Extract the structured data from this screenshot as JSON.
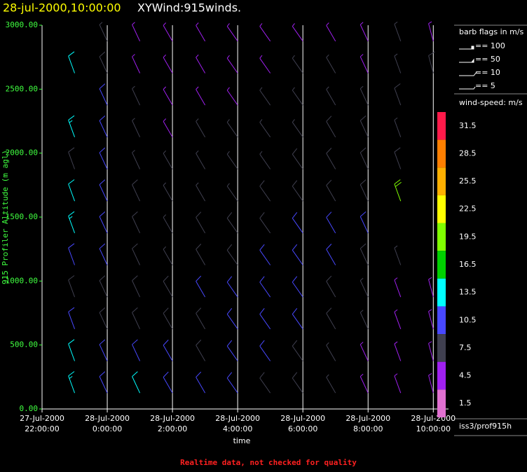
{
  "chart_data": {
    "type": "barb",
    "title": "28-jul-2000,10:00:00",
    "subtitle": "XYWind:915winds.",
    "ylabel": "915 Profiler Altitude (m agl)",
    "xlabel": "time",
    "note": "Realtime data, not checked for quality",
    "station": "iss3/prof915h",
    "barb_legend_title": "barb flags in m/s",
    "barb_legend": [
      "== 100",
      "== 50",
      "== 10",
      "== 5"
    ],
    "colorbar_title": "wind-speed: m/s",
    "colorbar_levels": [
      31.5,
      28.5,
      25.5,
      22.5,
      19.5,
      16.5,
      13.5,
      10.5,
      7.5,
      4.5,
      1.5
    ],
    "colorbar_colors": [
      "#ff1a4a",
      "#ff7f00",
      "#ffb000",
      "#ffff00",
      "#80ff00",
      "#00d000",
      "#00ffff",
      "#4848ff",
      "#404050",
      "#a020f0",
      "#e070d0"
    ],
    "ylim": [
      0,
      3000
    ],
    "yticks": [
      {
        "value": 0,
        "label": "0.00"
      },
      {
        "value": 500,
        "label": "500.00"
      },
      {
        "value": 1000,
        "label": "1000.00"
      },
      {
        "value": 1500,
        "label": "1500.00"
      },
      {
        "value": 2000,
        "label": "2000.00"
      },
      {
        "value": 2500,
        "label": "2500.00"
      },
      {
        "value": 3000,
        "label": "3000.00"
      }
    ],
    "xlim": [
      "2000-07-27T22:00",
      "2000-07-28T10:28"
    ],
    "xticks": [
      {
        "value": "2000-07-27T22:00",
        "label": [
          "27-Jul-2000",
          "22:00:00"
        ]
      },
      {
        "value": "2000-07-28T00:00",
        "label": [
          "28-Jul-2000",
          "0:00:00"
        ]
      },
      {
        "value": "2000-07-28T02:00",
        "label": [
          "28-Jul-2000",
          "2:00:00"
        ]
      },
      {
        "value": "2000-07-28T04:00",
        "label": [
          "28-Jul-2000",
          "4:00:00"
        ]
      },
      {
        "value": "2000-07-28T06:00",
        "label": [
          "28-Jul-2000",
          "6:00:00"
        ]
      },
      {
        "value": "2000-07-28T08:00",
        "label": [
          "28-Jul-2000",
          "8:00:00"
        ]
      },
      {
        "value": "2000-07-28T10:00",
        "label": [
          "28-Jul-2000",
          "10:00:00"
        ]
      }
    ],
    "grid": true,
    "altitudes": [
      125,
      375,
      625,
      875,
      1125,
      1375,
      1625,
      1875,
      2125,
      2375,
      2625,
      2875
    ],
    "series": [
      {
        "x": "2000-07-27T23:00",
        "direction": 340,
        "speeds": [
          13,
          12,
          9,
          8,
          9,
          13,
          12,
          8,
          13,
          null,
          12,
          null
        ]
      },
      {
        "x": "2000-07-28T00:00",
        "direction": 335,
        "speeds": [
          9,
          9,
          8,
          8,
          10,
          9,
          9,
          10,
          9,
          9,
          8,
          6
        ]
      },
      {
        "x": "2000-07-28T01:00",
        "direction": 335,
        "speeds": [
          12,
          9,
          8,
          8,
          8,
          8,
          8,
          7,
          7,
          6,
          5,
          4
        ]
      },
      {
        "x": "2000-07-28T02:00",
        "direction": 330,
        "speeds": [
          9,
          9,
          8,
          8,
          7,
          7,
          7,
          6,
          5,
          5,
          4,
          4
        ]
      },
      {
        "x": "2000-07-28T03:00",
        "direction": 330,
        "speeds": [
          9,
          8,
          8,
          9,
          8,
          8,
          7,
          6,
          6,
          5,
          5,
          4
        ]
      },
      {
        "x": "2000-07-28T04:00",
        "direction": 325,
        "speeds": [
          9,
          9,
          9,
          9,
          8,
          8,
          7,
          7,
          6,
          5,
          4,
          4
        ]
      },
      {
        "x": "2000-07-28T05:00",
        "direction": 325,
        "speeds": [
          8,
          9,
          9,
          10,
          9,
          8,
          8,
          7,
          7,
          6,
          5,
          4
        ]
      },
      {
        "x": "2000-07-28T06:00",
        "direction": 325,
        "speeds": [
          8,
          8,
          9,
          9,
          9,
          9,
          8,
          8,
          7,
          6,
          6,
          5
        ]
      },
      {
        "x": "2000-07-28T07:00",
        "direction": 330,
        "speeds": [
          6,
          7,
          8,
          8,
          9,
          9,
          8,
          8,
          8,
          7,
          6,
          5
        ]
      },
      {
        "x": "2000-07-28T08:00",
        "direction": 335,
        "speeds": [
          5,
          5,
          6,
          7,
          8,
          9,
          8,
          8,
          8,
          7,
          5,
          4
        ]
      },
      {
        "x": "2000-07-28T09:00",
        "direction": 340,
        "speeds": [
          5,
          5,
          4,
          5,
          6,
          null,
          19,
          8,
          7,
          8,
          7,
          6
        ]
      },
      {
        "x": "2000-07-28T10:00",
        "direction": 345,
        "speeds": [
          4,
          4,
          5,
          5,
          null,
          null,
          null,
          null,
          null,
          null,
          8,
          5
        ]
      }
    ]
  }
}
